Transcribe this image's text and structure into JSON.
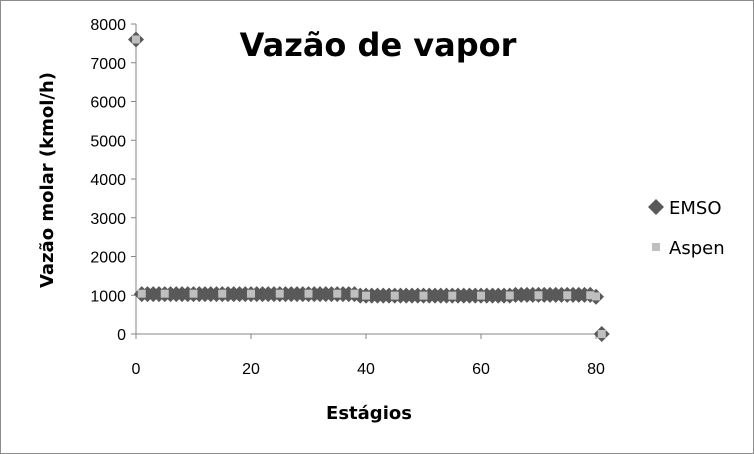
{
  "chart_data": {
    "type": "scatter",
    "title": "Vazão de vapor",
    "xlabel": "Estágios",
    "ylabel": "Vazão molar (kmol/h)",
    "xlim": [
      0,
      80
    ],
    "ylim": [
      0,
      8000
    ],
    "x_ticks": [
      0,
      20,
      40,
      60,
      80
    ],
    "y_ticks": [
      0,
      1000,
      2000,
      3000,
      4000,
      5000,
      6000,
      7000,
      8000
    ],
    "legend_position": "right",
    "grid": false,
    "series": [
      {
        "name": "EMSO",
        "marker": "diamond",
        "color": "#595959",
        "points": [
          [
            0,
            7600
          ],
          [
            1,
            1030
          ],
          [
            2,
            1030
          ],
          [
            3,
            1030
          ],
          [
            4,
            1030
          ],
          [
            5,
            1030
          ],
          [
            6,
            1030
          ],
          [
            7,
            1030
          ],
          [
            8,
            1030
          ],
          [
            9,
            1030
          ],
          [
            10,
            1030
          ],
          [
            11,
            1030
          ],
          [
            12,
            1030
          ],
          [
            13,
            1030
          ],
          [
            14,
            1030
          ],
          [
            15,
            1030
          ],
          [
            16,
            1030
          ],
          [
            17,
            1030
          ],
          [
            18,
            1030
          ],
          [
            19,
            1030
          ],
          [
            20,
            1030
          ],
          [
            21,
            1030
          ],
          [
            22,
            1030
          ],
          [
            23,
            1030
          ],
          [
            24,
            1030
          ],
          [
            25,
            1030
          ],
          [
            26,
            1030
          ],
          [
            27,
            1030
          ],
          [
            28,
            1030
          ],
          [
            29,
            1030
          ],
          [
            30,
            1030
          ],
          [
            31,
            1030
          ],
          [
            32,
            1030
          ],
          [
            33,
            1030
          ],
          [
            34,
            1030
          ],
          [
            35,
            1030
          ],
          [
            36,
            1030
          ],
          [
            37,
            1030
          ],
          [
            38,
            1030
          ],
          [
            39,
            990
          ],
          [
            40,
            990
          ],
          [
            41,
            990
          ],
          [
            42,
            990
          ],
          [
            43,
            990
          ],
          [
            44,
            990
          ],
          [
            45,
            990
          ],
          [
            46,
            990
          ],
          [
            47,
            990
          ],
          [
            48,
            990
          ],
          [
            49,
            990
          ],
          [
            50,
            990
          ],
          [
            51,
            990
          ],
          [
            52,
            990
          ],
          [
            53,
            990
          ],
          [
            54,
            990
          ],
          [
            55,
            990
          ],
          [
            56,
            990
          ],
          [
            57,
            990
          ],
          [
            58,
            990
          ],
          [
            59,
            990
          ],
          [
            60,
            990
          ],
          [
            61,
            990
          ],
          [
            62,
            990
          ],
          [
            63,
            990
          ],
          [
            64,
            990
          ],
          [
            65,
            990
          ],
          [
            66,
            1010
          ],
          [
            67,
            1010
          ],
          [
            68,
            1010
          ],
          [
            69,
            1010
          ],
          [
            70,
            1010
          ],
          [
            71,
            1010
          ],
          [
            72,
            1010
          ],
          [
            73,
            1010
          ],
          [
            74,
            1010
          ],
          [
            75,
            1010
          ],
          [
            76,
            1010
          ],
          [
            77,
            1010
          ],
          [
            78,
            1010
          ],
          [
            79,
            1010
          ],
          [
            80,
            960
          ],
          [
            81,
            0
          ]
        ]
      },
      {
        "name": "Aspen",
        "marker": "square",
        "color": "#bfbfbf",
        "points": [
          [
            0,
            7600
          ],
          [
            1,
            1040
          ],
          [
            5,
            1040
          ],
          [
            10,
            1040
          ],
          [
            15,
            1040
          ],
          [
            20,
            1040
          ],
          [
            25,
            1040
          ],
          [
            30,
            1040
          ],
          [
            35,
            1040
          ],
          [
            38,
            1040
          ],
          [
            40,
            990
          ],
          [
            45,
            990
          ],
          [
            50,
            990
          ],
          [
            55,
            990
          ],
          [
            60,
            990
          ],
          [
            65,
            995
          ],
          [
            70,
            1000
          ],
          [
            75,
            1000
          ],
          [
            79,
            1000
          ],
          [
            80,
            970
          ],
          [
            81,
            0
          ]
        ]
      }
    ]
  }
}
